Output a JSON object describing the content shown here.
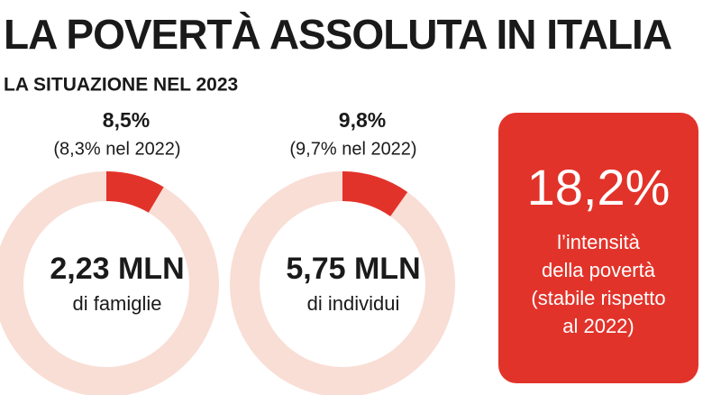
{
  "header": {
    "title": "LA POVERTÀ ASSOLUTA IN ITALIA",
    "subtitle": "LA SITUAZIONE NEL 2023"
  },
  "chart_data": [
    {
      "type": "donut",
      "values": [
        8.5
      ],
      "value_labels": [
        "8,5%"
      ],
      "color": "#e2332a",
      "track_color": "#f9ded6",
      "note": "(8,3% nel 2022)",
      "center_value": "2,23 MLN",
      "center_label": "di famiglie"
    },
    {
      "type": "donut",
      "values": [
        9.8
      ],
      "value_labels": [
        "9,8%"
      ],
      "color": "#e2332a",
      "track_color": "#f9ded6",
      "note": "(9,7% nel 2022)",
      "center_value": "5,75 MLN",
      "center_label": "di individui"
    }
  ],
  "box": {
    "value": "18,2%",
    "lines": [
      "l’intensità",
      "della povertà",
      "(stabile rispetto",
      "al 2022)"
    ]
  }
}
